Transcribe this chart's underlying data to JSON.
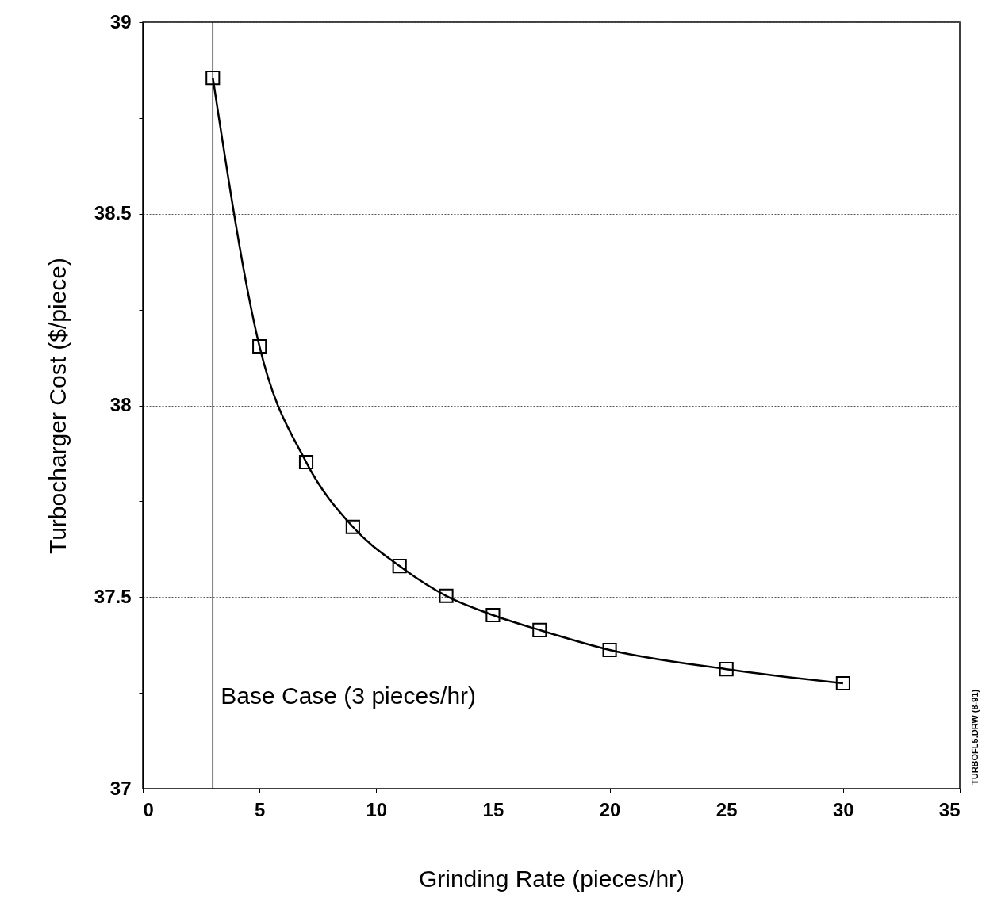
{
  "chart_data": {
    "type": "line",
    "xlabel": "Grinding Rate (pieces/hr)",
    "ylabel": "Turbocharger Cost ($/piece)",
    "x": [
      3,
      5,
      7,
      9,
      11,
      13,
      15,
      17,
      20,
      25,
      30
    ],
    "series": [
      {
        "color": "#000000",
        "values": [
          38.855,
          38.154,
          37.852,
          37.683,
          37.581,
          37.503,
          37.453,
          37.414,
          37.362,
          37.312,
          37.275
        ]
      }
    ],
    "xlim": [
      0,
      35
    ],
    "xticks": [
      0,
      5,
      10,
      15,
      20,
      25,
      30,
      35
    ],
    "ylim": [
      37,
      39
    ],
    "yticks": [
      37,
      {
        "value": 37.25,
        "label": null
      },
      37.5,
      {
        "value": 37.75,
        "label": null
      },
      38,
      {
        "value": 38.25,
        "label": null
      },
      38.5,
      {
        "value": 38.75,
        "label": null
      },
      39
    ],
    "grid": "y",
    "marker": "square",
    "line_style": "solid",
    "ref_lines": [
      {
        "axis": "x",
        "value": 3,
        "label": "Base Case (3 pieces/hr)",
        "color": "#000000"
      }
    ],
    "annotations": [
      "TURBOFL5.DRW (8-91)"
    ]
  }
}
